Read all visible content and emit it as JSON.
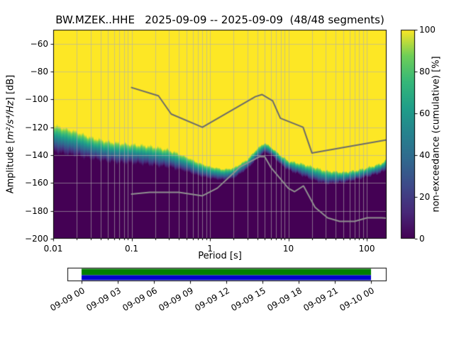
{
  "chart_data": {
    "type": "heatmap",
    "title": "BW.MZEK..HHE   2025-09-09 -- 2025-09-09  (48/48 segments)",
    "xlabel": "Period [s]",
    "ylabel": "Amplitude [m²/s⁴/Hz] [dB]",
    "ylabel_parts": {
      "prefix": "Amplitude [",
      "math": "m²/s⁴/Hz",
      "suffix": "] [dB]"
    },
    "xscale": "log",
    "xlim": [
      0.01,
      179
    ],
    "ylim": [
      -200,
      -50
    ],
    "grid": true,
    "x_ticks": [
      {
        "value": 0.01,
        "label": "0.01"
      },
      {
        "value": 0.1,
        "label": "0.1"
      },
      {
        "value": 1,
        "label": "1"
      },
      {
        "value": 10,
        "label": "10"
      },
      {
        "value": 100,
        "label": "100"
      }
    ],
    "y_ticks": [
      {
        "value": -60,
        "label": "−60"
      },
      {
        "value": -80,
        "label": "−80"
      },
      {
        "value": -100,
        "label": "−100"
      },
      {
        "value": -120,
        "label": "−120"
      },
      {
        "value": -140,
        "label": "−140"
      },
      {
        "value": -160,
        "label": "−160"
      },
      {
        "value": -180,
        "label": "−180"
      },
      {
        "value": -200,
        "label": "−200"
      }
    ],
    "colorbar": {
      "label": "non-exceedance (cumulative) [%]",
      "colormap": "viridis",
      "ticks": [
        {
          "value": 0,
          "label": "0"
        },
        {
          "value": 20,
          "label": "20"
        },
        {
          "value": 40,
          "label": "40"
        },
        {
          "value": 60,
          "label": "60"
        },
        {
          "value": 80,
          "label": "80"
        },
        {
          "value": 100,
          "label": "100"
        }
      ],
      "stops": [
        [
          0.0,
          "#440154"
        ],
        [
          0.125,
          "#482878"
        ],
        [
          0.25,
          "#3e4989"
        ],
        [
          0.375,
          "#31688e"
        ],
        [
          0.5,
          "#26828e"
        ],
        [
          0.625,
          "#1f9e89"
        ],
        [
          0.75,
          "#35b779"
        ],
        [
          0.875,
          "#6ece58"
        ],
        [
          1.0,
          "#fde725"
        ]
      ]
    },
    "colors": {
      "grid": "#b0b0b0",
      "background": "#ffffff",
      "axes": "#000000",
      "noise_model_high_line": "#6b6b6b",
      "noise_model_low_line": "#909090"
    },
    "cumulative_boundaries": {
      "description": "per period: dB where cumulative non-exceedance rises from 0% (low_db) to 100% (high_db)",
      "periods": [
        0.01,
        0.015,
        0.02,
        0.03,
        0.05,
        0.07,
        0.1,
        0.15,
        0.2,
        0.3,
        0.5,
        0.7,
        1,
        1.5,
        2,
        3,
        4,
        5,
        6,
        8,
        10,
        15,
        20,
        30,
        50,
        70,
        100,
        150,
        179
      ],
      "low_db": [
        -138,
        -140,
        -141,
        -143,
        -145,
        -146,
        -146,
        -147,
        -148,
        -149,
        -152,
        -155,
        -157,
        -158,
        -157,
        -150,
        -143,
        -138,
        -140,
        -147,
        -151,
        -155,
        -158,
        -161,
        -160,
        -158,
        -156,
        -153,
        -151
      ],
      "high_db": [
        -118,
        -121,
        -123,
        -127,
        -130,
        -131,
        -132,
        -133,
        -134,
        -136,
        -141,
        -145,
        -148,
        -150,
        -149,
        -143,
        -135,
        -131,
        -134,
        -140,
        -144,
        -146,
        -148,
        -151,
        -152,
        -151,
        -149,
        -146,
        -143
      ]
    },
    "noise_models": {
      "high": {
        "periods": [
          0.1,
          0.22,
          0.32,
          0.8,
          3.8,
          4.6,
          6.3,
          7.9,
          15.4,
          20,
          179
        ],
        "db": [
          -91.5,
          -97.4,
          -110.5,
          -120,
          -98,
          -96.5,
          -101,
          -113.5,
          -120,
          -138.5,
          -129
        ]
      },
      "low": {
        "periods": [
          0.1,
          0.17,
          0.4,
          0.8,
          1.24,
          2.4,
          4.3,
          5,
          6,
          10,
          12,
          15.6,
          21.9,
          31.6,
          45,
          70,
          101,
          154,
          179
        ],
        "db": [
          -168,
          -166.7,
          -166.7,
          -169.2,
          -163.7,
          -148.6,
          -141.1,
          -141.1,
          -149,
          -163.8,
          -166.2,
          -162.1,
          -177.5,
          -185,
          -187.5,
          -187.5,
          -185,
          -185,
          -185.3
        ]
      }
    },
    "timeline": {
      "tick_labels": [
        "09-09 00",
        "09-09 03",
        "09-09 06",
        "09-09 09",
        "09-09 12",
        "09-09 15",
        "09-09 18",
        "09-09 21",
        "09-10 00"
      ],
      "bar_colors": {
        "top": "#007e00",
        "bottom": "#0000cd"
      }
    }
  }
}
